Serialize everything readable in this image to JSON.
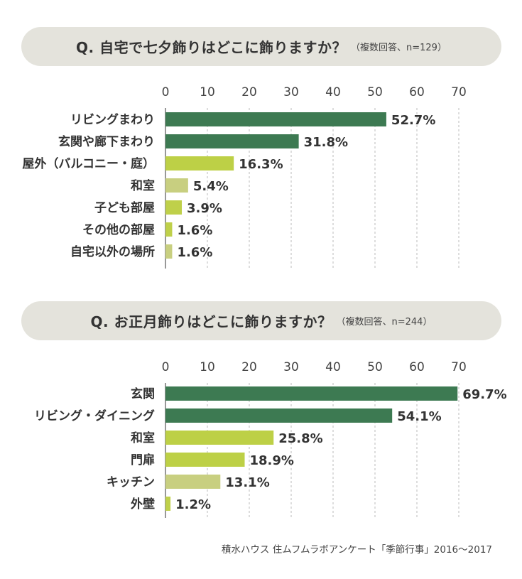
{
  "source": "積水ハウス 住ムフムラボアンケート「季節行事」2016〜2017",
  "chart_data": [
    {
      "type": "bar",
      "orientation": "horizontal",
      "title": "Q. 自宅で七夕飾りはどこに飾りますか？",
      "note": "（複数回答、n=129）",
      "categories": [
        "リビングまわり",
        "玄関や廊下まわり",
        "屋外（バルコニー・庭）",
        "和室",
        "子ども部屋",
        "その他の部屋",
        "自宅以外の場所"
      ],
      "values": [
        52.7,
        31.8,
        16.3,
        5.4,
        3.9,
        1.6,
        1.6
      ],
      "value_labels": [
        "52.7%",
        "31.8%",
        "16.3%",
        "5.4%",
        "3.9%",
        "1.6%",
        "1.6%"
      ],
      "bar_colors": [
        "#3d7a52",
        "#3d7a52",
        "#bdd046",
        "#c8cf80",
        "#bfd04a",
        "#bfd04a",
        "#c8cf80"
      ],
      "xlim": [
        0,
        70
      ],
      "xticks": [
        "0",
        "10",
        "20",
        "30",
        "40",
        "50",
        "60",
        "70"
      ],
      "grid": true
    },
    {
      "type": "bar",
      "orientation": "horizontal",
      "title": "Q. お正月飾りはどこに飾りますか？",
      "note": "（複数回答、n=244）",
      "categories": [
        "玄関",
        "リビング・ダイニング",
        "和室",
        "門扉",
        "キッチン",
        "外壁"
      ],
      "values": [
        69.7,
        54.1,
        25.8,
        18.9,
        13.1,
        1.2
      ],
      "value_labels": [
        "69.7%",
        "54.1%",
        "25.8%",
        "18.9%",
        "13.1%",
        "1.2%"
      ],
      "bar_colors": [
        "#3d7a52",
        "#3d7a52",
        "#bdd046",
        "#bdd046",
        "#c8cf80",
        "#bfd04a"
      ],
      "xlim": [
        0,
        70
      ],
      "xticks": [
        "0",
        "10",
        "20",
        "30",
        "40",
        "50",
        "60",
        "70"
      ],
      "grid": true
    }
  ]
}
